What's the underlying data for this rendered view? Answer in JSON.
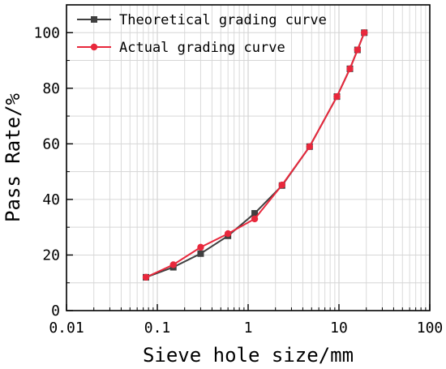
{
  "chart_data": {
    "type": "line",
    "xscale": "log",
    "xlim": [
      0.01,
      100
    ],
    "ylim": [
      0,
      110
    ],
    "xlabel": "Sieve hole size/mm",
    "ylabel": "Pass Rate/%",
    "x_tick_labels": [
      "0.01",
      "0.1",
      "1",
      "10",
      "100"
    ],
    "y_tick_labels": [
      "0",
      "20",
      "40",
      "60",
      "80",
      "100"
    ],
    "grid": true,
    "legend_position": "top-left",
    "series": [
      {
        "name": "Theoretical grading curve",
        "color": "#404040",
        "marker": "square",
        "x": [
          0.075,
          0.15,
          0.3,
          0.6,
          1.18,
          2.36,
          4.75,
          9.5,
          13.2,
          16,
          19
        ],
        "y": [
          12.0,
          15.6,
          20.5,
          26.9,
          35.0,
          45.0,
          59.0,
          77.0,
          87.0,
          93.8,
          100.0
        ]
      },
      {
        "name": "Actual grading curve",
        "color": "#e8283c",
        "marker": "circle",
        "x": [
          0.075,
          0.15,
          0.3,
          0.6,
          1.18,
          2.36,
          4.75,
          9.5,
          13.2,
          16,
          19
        ],
        "y": [
          12.0,
          16.5,
          22.8,
          27.7,
          33.0,
          45.2,
          59.0,
          77.0,
          87.0,
          93.8,
          100.0
        ]
      }
    ]
  }
}
